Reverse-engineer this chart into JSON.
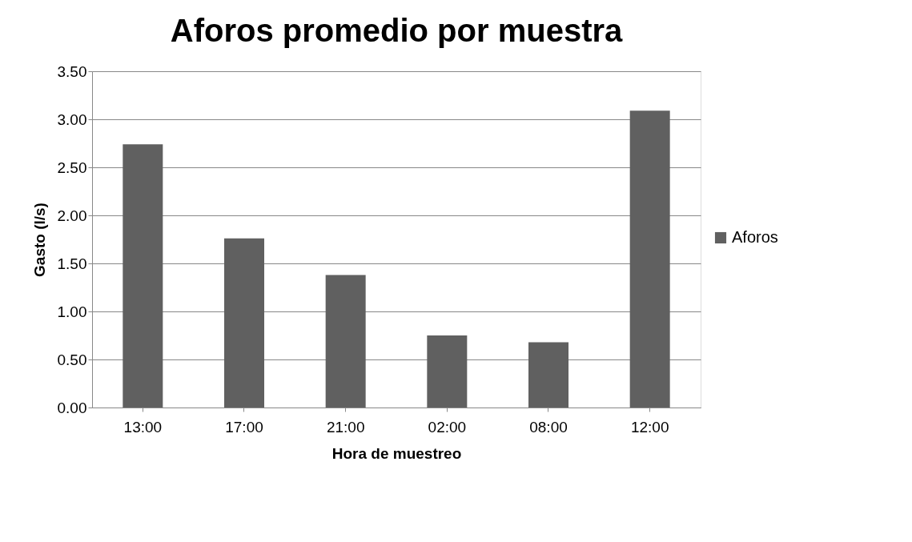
{
  "chart_data": {
    "type": "bar",
    "title": "Aforos  promedio por muestra",
    "xlabel": "Hora de muestreo",
    "ylabel": "Gasto (l/s)",
    "categories": [
      "13:00",
      "17:00",
      "21:00",
      "02:00",
      "08:00",
      "12:00"
    ],
    "series": [
      {
        "name": "Aforos",
        "color": "#606060",
        "values": [
          2.74,
          1.76,
          1.38,
          0.75,
          0.68,
          3.09
        ]
      }
    ],
    "ylim": [
      0,
      3.5
    ],
    "yticks": [
      {
        "value": 0,
        "label": "0.00"
      },
      {
        "value": 0.5,
        "label": "0.50"
      },
      {
        "value": 1,
        "label": "1.00"
      },
      {
        "value": 1.5,
        "label": "1.50"
      },
      {
        "value": 2,
        "label": "2.00"
      },
      {
        "value": 2.5,
        "label": "2.50"
      },
      {
        "value": 3,
        "label": "3.00"
      },
      {
        "value": 3.5,
        "label": "3.50"
      }
    ],
    "grid": "y",
    "legend": "right"
  }
}
